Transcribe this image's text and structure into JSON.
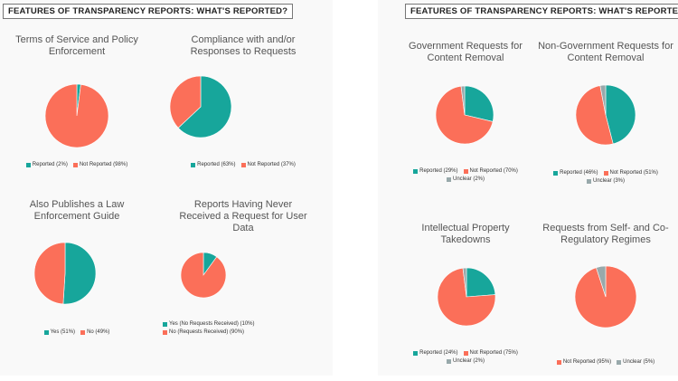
{
  "colors": {
    "teal": "#17a69b",
    "coral": "#fb6f59",
    "grey": "#98a9ab"
  },
  "sections": {
    "left_title": "FEATURES OF TRANSPARENCY REPORTS: WHAT'S REPORTED?",
    "right_title": "FEATURES OF TRANSPARENCY REPORTS: WHAT'S REPORTED?"
  },
  "chart_data": [
    {
      "type": "pie",
      "title": "Terms of Service and Policy Enforcement",
      "title_lines": [
        "Terms of Service and Policy",
        "Enforcement"
      ],
      "slices": [
        {
          "label": "Reported",
          "value": 2,
          "color": "teal",
          "legend": "Reported (2%)"
        },
        {
          "label": "Not Reported",
          "value": 98,
          "color": "coral",
          "legend": "Not Reported (98%)"
        }
      ]
    },
    {
      "type": "pie",
      "title": "Compliance with and/or Responses to Requests",
      "title_lines": [
        "Compliance with and/or",
        "Responses to Requests"
      ],
      "slices": [
        {
          "label": "Reported",
          "value": 63,
          "color": "teal",
          "legend": "Reported (63%)"
        },
        {
          "label": "Not Reported",
          "value": 37,
          "color": "coral",
          "legend": "Not Reported (37%)"
        }
      ]
    },
    {
      "type": "pie",
      "title": "Also Publishes a Law Enforcement Guide",
      "title_lines": [
        "Also Publishes a Law",
        "Enforcement Guide"
      ],
      "slices": [
        {
          "label": "Yes",
          "value": 51,
          "color": "teal",
          "legend": "Yes (51%)"
        },
        {
          "label": "No",
          "value": 49,
          "color": "coral",
          "legend": "No (49%)"
        }
      ]
    },
    {
      "type": "pie",
      "title": "Reports Having Never Received a Request for User Data",
      "title_lines": [
        "Reports Having Never",
        "Received a Request for User",
        "Data"
      ],
      "slices": [
        {
          "label": "Yes (No Requests Received)",
          "value": 10,
          "color": "teal",
          "legend": "Yes (No Requests Received) (10%)"
        },
        {
          "label": "No (Requests Received)",
          "value": 90,
          "color": "coral",
          "legend": "No (Requests Received) (90%)"
        }
      ]
    },
    {
      "type": "pie",
      "title": "Government Requests for Content Removal",
      "title_lines": [
        "Government Requests for",
        "Content Removal"
      ],
      "slices": [
        {
          "label": "Reported",
          "value": 29,
          "color": "teal",
          "legend": "Reported (29%)"
        },
        {
          "label": "Not Reported",
          "value": 70,
          "color": "coral",
          "legend": "Not Reported (70%)"
        },
        {
          "label": "Unclear",
          "value": 2,
          "color": "grey",
          "legend": "Unclear (2%)"
        }
      ]
    },
    {
      "type": "pie",
      "title": "Non-Government Requests for Content Removal",
      "title_lines": [
        "Non-Government Requests for",
        "Content Removal"
      ],
      "slices": [
        {
          "label": "Reported",
          "value": 46,
          "color": "teal",
          "legend": "Reported (46%)"
        },
        {
          "label": "Not Reported",
          "value": 51,
          "color": "coral",
          "legend": "Not Reported (51%)"
        },
        {
          "label": "Unclear",
          "value": 3,
          "color": "grey",
          "legend": "Unclear (3%)"
        }
      ]
    },
    {
      "type": "pie",
      "title": "Intellectual Property Takedowns",
      "title_lines": [
        "Intellectual Property",
        "Takedowns"
      ],
      "slices": [
        {
          "label": "Reported",
          "value": 24,
          "color": "teal",
          "legend": "Reported (24%)"
        },
        {
          "label": "Not Reported",
          "value": 75,
          "color": "coral",
          "legend": "Not Reported (75%)"
        },
        {
          "label": "Unclear",
          "value": 2,
          "color": "grey",
          "legend": "Unclear (2%)"
        }
      ]
    },
    {
      "type": "pie",
      "title": "Requests from Self- and Co-Regulatory Regimes",
      "title_lines": [
        "Requests from Self- and Co-",
        "Regulatory Regimes"
      ],
      "slices": [
        {
          "label": "Not Reported",
          "value": 95,
          "color": "coral",
          "legend": "Not Reported (95%)"
        },
        {
          "label": "Unclear",
          "value": 5,
          "color": "grey",
          "legend": "Unclear (5%)"
        }
      ]
    }
  ]
}
